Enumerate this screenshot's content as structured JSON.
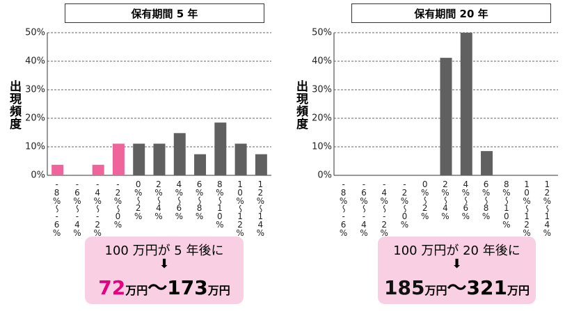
{
  "chart_data": [
    {
      "type": "bar",
      "title": "保有期間 5 年",
      "ylabel": "出現頻度",
      "categories": [
        "-8%〜-6%",
        "-6%〜-4%",
        "-4%〜-2%",
        "-2%〜0%",
        "0%〜2%",
        "2%〜4%",
        "4%〜6%",
        "6%〜8%",
        "8%〜10%",
        "10%〜12%",
        "12%〜14%"
      ],
      "values": [
        3.7,
        0,
        3.7,
        11.1,
        11.1,
        11.1,
        14.8,
        7.4,
        18.5,
        11.1,
        7.4
      ],
      "colors": [
        "#f0649c",
        "#f0649c",
        "#f0649c",
        "#f0649c",
        "#606060",
        "#606060",
        "#606060",
        "#606060",
        "#606060",
        "#606060",
        "#606060"
      ],
      "ylim": [
        0,
        50
      ],
      "yticks": [
        {
          "value": 0,
          "label": "0%"
        },
        {
          "value": 10,
          "label": "10%"
        },
        {
          "value": 20,
          "label": "20%"
        },
        {
          "value": 30,
          "label": "30%"
        },
        {
          "value": 40,
          "label": "40%"
        },
        {
          "value": 50,
          "label": "50%"
        }
      ],
      "grid": true,
      "annotation": {
        "text": "100 万円が 5 年後に",
        "low_value": "72",
        "low_unit": "万円",
        "separator": "〜",
        "high_value": "173",
        "high_unit": "万円",
        "low_color": "#e4007f"
      }
    },
    {
      "type": "bar",
      "title": "保有期間 20 年",
      "ylabel": "出現頻度",
      "categories": [
        "-8%〜-6%",
        "-6%〜-4%",
        "-4%〜-2%",
        "-2%〜0%",
        "0%〜2%",
        "2%〜4%",
        "4%〜6%",
        "6%〜8%",
        "8%〜10%",
        "10%〜12%",
        "12%〜14%"
      ],
      "values": [
        0,
        0,
        0,
        0,
        0,
        41.2,
        50,
        8.5,
        0,
        0,
        0
      ],
      "colors": [
        "#606060",
        "#606060",
        "#606060",
        "#606060",
        "#606060",
        "#606060",
        "#606060",
        "#606060",
        "#606060",
        "#606060",
        "#606060"
      ],
      "ylim": [
        0,
        50
      ],
      "yticks": [
        {
          "value": 0,
          "label": "0%"
        },
        {
          "value": 10,
          "label": "10%"
        },
        {
          "value": 20,
          "label": "20%"
        },
        {
          "value": 30,
          "label": "30%"
        },
        {
          "value": 40,
          "label": "40%"
        },
        {
          "value": 50,
          "label": "50%"
        }
      ],
      "grid": true,
      "annotation": {
        "text": "100 万円が 20 年後に",
        "low_value": "185",
        "low_unit": "万円",
        "separator": "〜",
        "high_value": "321",
        "high_unit": "万円",
        "low_color": "#111111"
      }
    }
  ]
}
